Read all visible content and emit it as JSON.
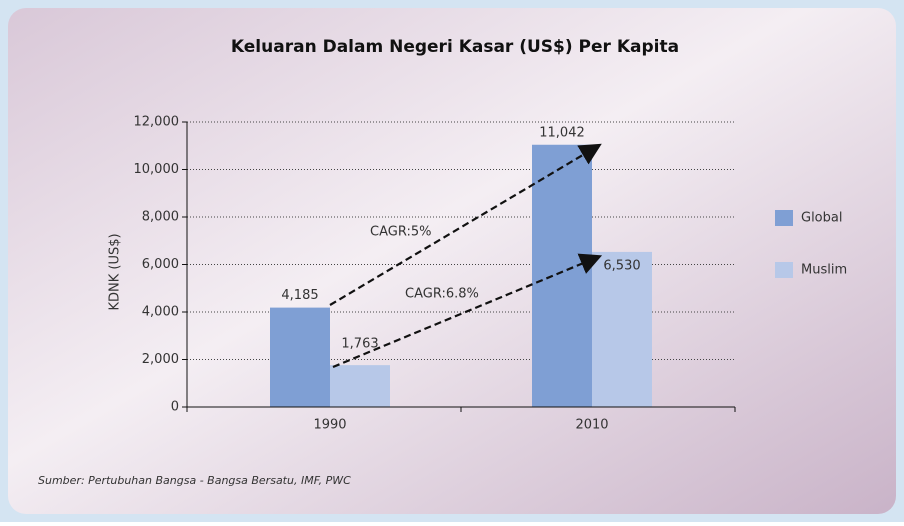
{
  "chart_data": {
    "type": "bar",
    "title": "Keluaran Dalam Negeri Kasar (US$) Per Kapita",
    "y_label": "KDNK (US$)",
    "categories": [
      "1990",
      "2010"
    ],
    "series": [
      {
        "name": "Global",
        "color": "#7f9fd4",
        "values": [
          4185,
          11042
        ],
        "value_labels": [
          "4,185",
          "11,042"
        ]
      },
      {
        "name": "Muslim",
        "color": "#b7c8e8",
        "values": [
          1763,
          6530
        ],
        "value_labels": [
          "1,763",
          "6,530"
        ]
      }
    ],
    "ylim": [
      0,
      12000
    ],
    "yticks": [
      0,
      {
        "value": 2000,
        "label": "2,000"
      },
      {
        "value": 4000,
        "label": "4,000"
      },
      {
        "value": 6000,
        "label": "6,000"
      },
      {
        "value": 8000,
        "label": "8,000"
      },
      {
        "value": 10000,
        "label": "10,000"
      },
      {
        "value": 12000,
        "label": "12,000"
      }
    ],
    "grid": true,
    "legend": "right",
    "annotations": [
      "CAGR:5%",
      "CAGR:6.8%"
    ],
    "source": "Sumber: Pertubuhan Bangsa - Bangsa Bersatu, IMF, PWC"
  }
}
